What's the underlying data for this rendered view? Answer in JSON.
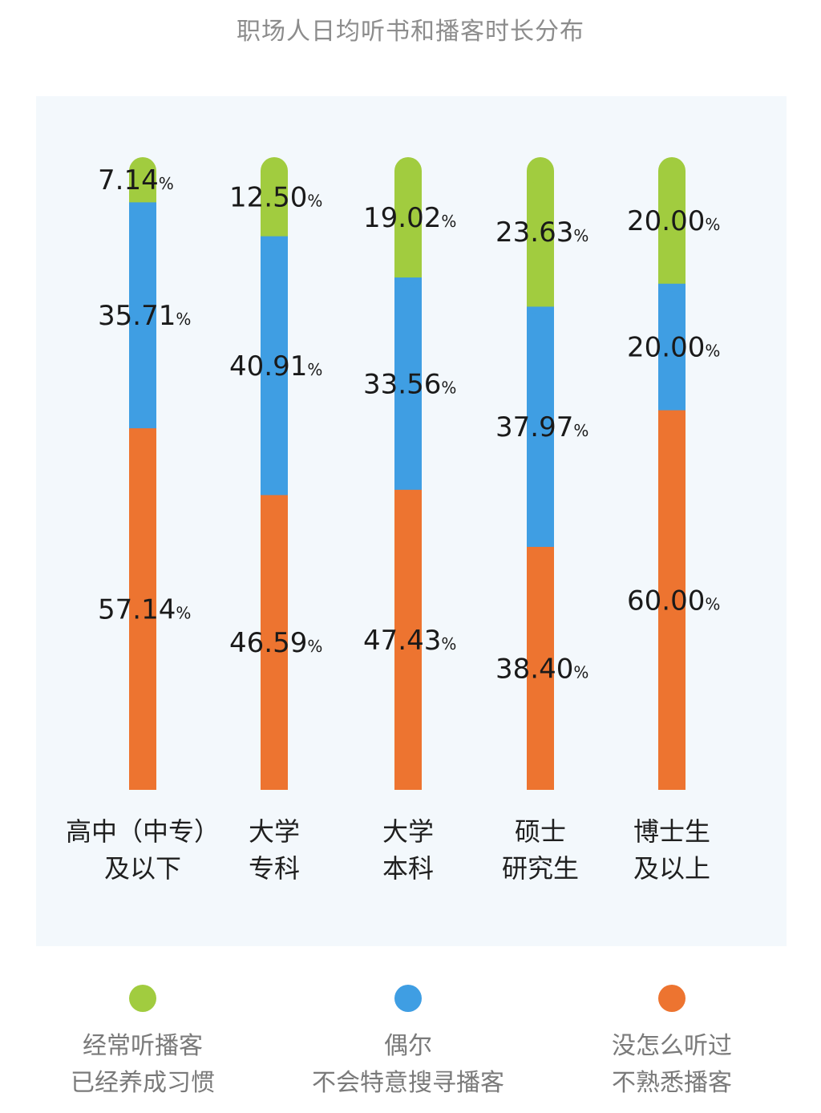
{
  "title": "职场人日均听书和播客时长分布",
  "chart_data": {
    "type": "bar",
    "stacked": true,
    "title": "职场人日均听书和播客时长分布",
    "categories": [
      [
        "高中（中专）",
        "及以下"
      ],
      [
        "大学",
        "专科"
      ],
      [
        "大学",
        "本科"
      ],
      [
        "硕士",
        "研究生"
      ],
      [
        "博士生",
        "及以上"
      ]
    ],
    "series": [
      {
        "name": [
          "没怎么听过",
          "不熟悉播客"
        ],
        "color": "#ed7430",
        "values": [
          57.14,
          46.59,
          47.43,
          38.4,
          60.0
        ]
      },
      {
        "name": [
          "偶尔",
          "不会特意搜寻播客"
        ],
        "color": "#3f9ee3",
        "values": [
          35.71,
          40.91,
          33.56,
          37.97,
          20.0
        ]
      },
      {
        "name": [
          "经常听播客",
          "已经养成习惯"
        ],
        "color": "#a1cc3f",
        "values": [
          7.14,
          12.5,
          19.02,
          23.63,
          20.0
        ]
      }
    ],
    "value_format": "%",
    "ylim": [
      0,
      100
    ],
    "legend_position": "bottom"
  }
}
